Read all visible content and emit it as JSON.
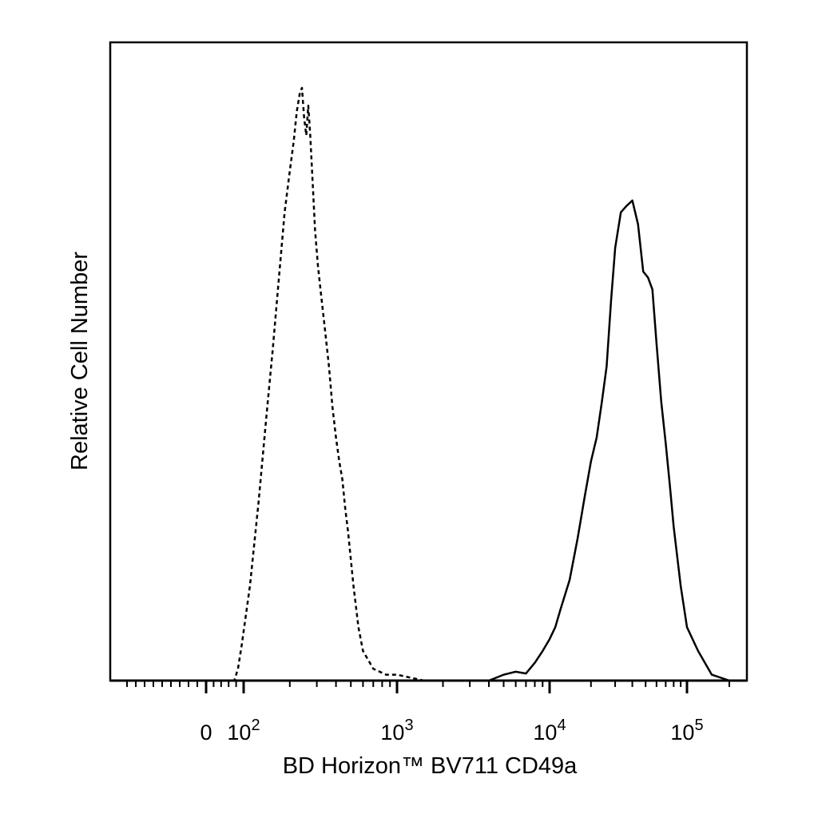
{
  "chart_data": {
    "type": "line",
    "title": "",
    "xlabel": "BD Horizon™ BV711 CD49a",
    "ylabel": "Relative Cell Number",
    "x_scale": "biexponential (linear near 0, log above 10^2)",
    "xlim": [
      -200,
      250000
    ],
    "ylim": [
      0,
      1.0
    ],
    "grid": false,
    "legend": "none",
    "x_ticks": [
      {
        "value": 0,
        "base": "0",
        "exp": ""
      },
      {
        "value": 100,
        "base": "10",
        "exp": "2"
      },
      {
        "value": 1000,
        "base": "10",
        "exp": "3"
      },
      {
        "value": 10000,
        "base": "10",
        "exp": "4"
      },
      {
        "value": 100000,
        "base": "10",
        "exp": "5"
      }
    ],
    "series": [
      {
        "style": "dashed",
        "x": [
          75,
          85,
          95,
          110,
          125,
          140,
          155,
          170,
          185,
          200,
          212,
          222,
          232,
          240,
          248,
          256,
          264,
          272,
          282,
          292,
          305,
          320,
          340,
          360,
          380,
          400,
          420,
          440,
          460,
          480,
          520,
          560,
          600,
          700,
          850,
          1000,
          1500,
          3000,
          8000,
          30000,
          120000,
          220000
        ],
        "y": [
          0.0,
          0.02,
          0.06,
          0.16,
          0.3,
          0.44,
          0.56,
          0.68,
          0.79,
          0.86,
          0.91,
          0.96,
          0.99,
          1.0,
          0.95,
          0.92,
          0.97,
          0.92,
          0.84,
          0.76,
          0.7,
          0.65,
          0.59,
          0.53,
          0.46,
          0.41,
          0.37,
          0.34,
          0.29,
          0.25,
          0.16,
          0.09,
          0.05,
          0.02,
          0.01,
          0.01,
          0.0,
          0.0,
          0.0,
          0.0,
          0.0,
          0.0
        ]
      },
      {
        "style": "solid",
        "x": [
          4000,
          5000,
          6000,
          7000,
          8000,
          9000,
          10000,
          11000,
          12000,
          14000,
          16000,
          18000,
          20000,
          22000,
          24000,
          26000,
          28000,
          30000,
          33000,
          36000,
          40000,
          44000,
          48000,
          52000,
          56000,
          60000,
          65000,
          70000,
          75000,
          80000,
          90000,
          100000,
          120000,
          150000,
          200000
        ],
        "y": [
          0.0,
          0.01,
          0.015,
          0.012,
          0.03,
          0.05,
          0.07,
          0.09,
          0.12,
          0.17,
          0.24,
          0.31,
          0.37,
          0.41,
          0.47,
          0.53,
          0.64,
          0.73,
          0.79,
          0.8,
          0.81,
          0.77,
          0.69,
          0.68,
          0.66,
          0.57,
          0.47,
          0.4,
          0.33,
          0.26,
          0.16,
          0.09,
          0.05,
          0.01,
          0.0
        ]
      }
    ]
  }
}
